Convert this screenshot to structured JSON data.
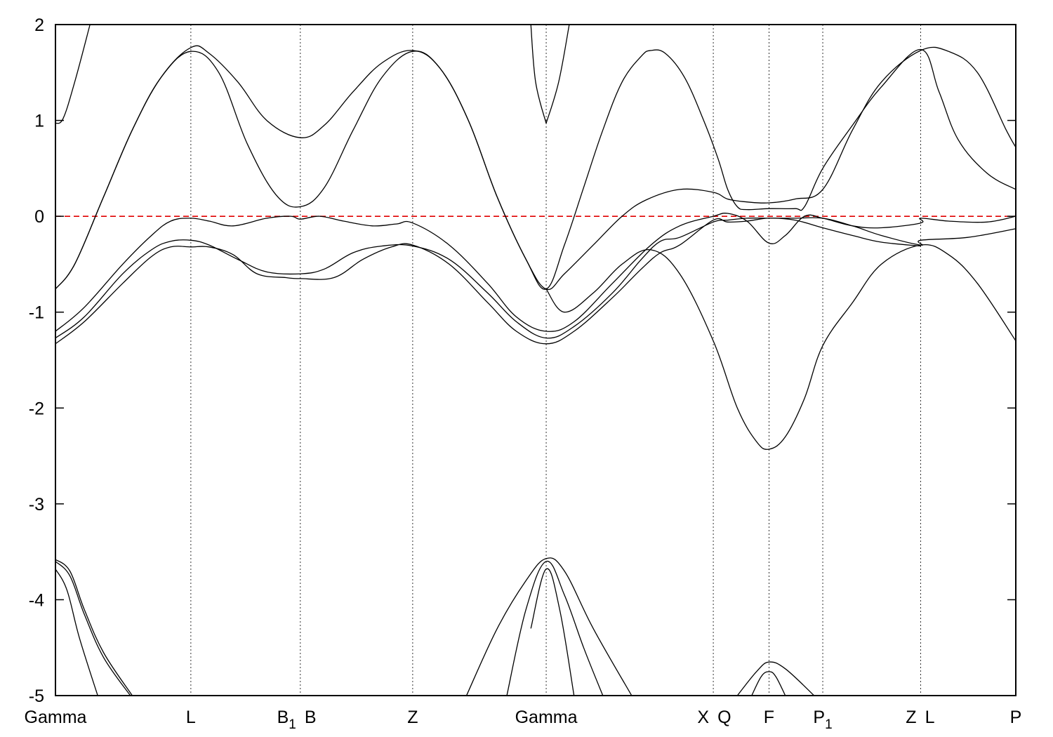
{
  "chart_data": {
    "type": "line",
    "title": "",
    "xlabel": "",
    "ylabel": "",
    "ylim": [
      -5,
      2
    ],
    "xlim": [
      0,
      10
    ],
    "yticks": [
      2,
      1,
      0,
      -1,
      -2,
      -3,
      -4,
      -5
    ],
    "ytick_labels": [
      "2",
      "1",
      "0",
      "-1",
      "-2",
      "-3",
      "-4",
      "-5"
    ],
    "kpoints": [
      {
        "label": "Gamma",
        "x": 0
      },
      {
        "label": "L",
        "x": 1.41
      },
      {
        "label": "B",
        "sub": "1",
        "x": 2.55
      },
      {
        "label": "B",
        "x": 2.55
      },
      {
        "label": "Z",
        "x": 3.72
      },
      {
        "label": "Gamma",
        "x": 5.11
      },
      {
        "label": "X",
        "x": 6.85
      },
      {
        "label": "Q",
        "x": 6.85
      },
      {
        "label": "F",
        "x": 7.43
      },
      {
        "label": "P",
        "sub": "1",
        "x": 7.99
      },
      {
        "label": "Z",
        "x": 9.01
      },
      {
        "label": "L",
        "x": 9.01
      },
      {
        "label": "P",
        "x": 10
      }
    ],
    "fermi_level": 0,
    "grid": false,
    "series": [
      {
        "values": [
          [
            0,
            0.97
          ],
          [
            0.08,
            1.02
          ],
          [
            0.2,
            1.4
          ],
          [
            0.36,
            2.0
          ]
        ]
      },
      {
        "values": [
          [
            0,
            -0.76
          ],
          [
            0.2,
            -0.5
          ],
          [
            0.5,
            0.2
          ],
          [
            0.8,
            0.9
          ],
          [
            1.1,
            1.45
          ],
          [
            1.41,
            1.72
          ],
          [
            1.7,
            1.5
          ],
          [
            2.0,
            0.75
          ],
          [
            2.3,
            0.22
          ],
          [
            2.55,
            0.1
          ],
          [
            2.8,
            0.3
          ],
          [
            3.1,
            0.9
          ],
          [
            3.4,
            1.45
          ],
          [
            3.72,
            1.72
          ],
          [
            4.0,
            1.55
          ],
          [
            4.3,
            1.0
          ],
          [
            4.6,
            0.2
          ],
          [
            4.9,
            -0.45
          ],
          [
            5.11,
            -0.76
          ],
          [
            5.3,
            -0.6
          ],
          [
            5.6,
            -0.3
          ],
          [
            5.9,
            0.0
          ],
          [
            6.15,
            0.17
          ],
          [
            6.5,
            0.28
          ],
          [
            6.85,
            0.25
          ],
          [
            7.0,
            0.18
          ],
          [
            7.2,
            0.15
          ],
          [
            7.43,
            0.14
          ],
          [
            7.7,
            0.18
          ],
          [
            7.99,
            0.28
          ],
          [
            8.3,
            0.9
          ],
          [
            8.6,
            1.4
          ],
          [
            9.01,
            1.73
          ],
          [
            9.3,
            1.72
          ],
          [
            9.6,
            1.5
          ],
          [
            9.9,
            0.9
          ],
          [
            10,
            0.72
          ]
        ]
      },
      {
        "values": [
          [
            0,
            -0.76
          ],
          [
            0.2,
            -0.5
          ],
          [
            0.5,
            0.2
          ],
          [
            0.8,
            0.9
          ],
          [
            1.1,
            1.45
          ],
          [
            1.41,
            1.76
          ],
          [
            1.6,
            1.7
          ],
          [
            1.9,
            1.4
          ],
          [
            2.2,
            1.0
          ],
          [
            2.55,
            0.82
          ],
          [
            2.8,
            0.95
          ],
          [
            3.1,
            1.3
          ],
          [
            3.4,
            1.6
          ],
          [
            3.72,
            1.73
          ],
          [
            4.0,
            1.55
          ],
          [
            4.3,
            1.0
          ],
          [
            4.6,
            0.2
          ],
          [
            4.9,
            -0.45
          ],
          [
            5.11,
            -0.76
          ],
          [
            5.3,
            -0.3
          ],
          [
            5.5,
            0.3
          ],
          [
            5.7,
            0.9
          ],
          [
            5.9,
            1.4
          ],
          [
            6.1,
            1.67
          ],
          [
            6.2,
            1.73
          ],
          [
            6.35,
            1.7
          ],
          [
            6.55,
            1.45
          ],
          [
            6.75,
            1.0
          ],
          [
            6.9,
            0.6
          ],
          [
            7.0,
            0.28
          ],
          [
            7.1,
            0.1
          ],
          [
            7.2,
            0.07
          ],
          [
            7.43,
            0.08
          ],
          [
            7.7,
            0.08
          ],
          [
            7.8,
            0.1
          ],
          [
            7.99,
            0.5
          ],
          [
            8.3,
            0.95
          ],
          [
            8.6,
            1.35
          ],
          [
            9.01,
            1.74
          ],
          [
            9.2,
            1.3
          ],
          [
            9.4,
            0.8
          ],
          [
            9.7,
            0.45
          ],
          [
            10,
            0.28
          ]
        ]
      },
      {
        "values": [
          [
            5.11,
            0.97
          ],
          [
            5.0,
            1.4
          ],
          [
            4.95,
            2.0
          ]
        ]
      },
      {
        "values": [
          [
            5.11,
            0.97
          ],
          [
            5.24,
            1.4
          ],
          [
            5.35,
            2.0
          ]
        ]
      },
      {
        "values": [
          [
            0,
            -1.2
          ],
          [
            0.3,
            -0.95
          ],
          [
            0.7,
            -0.5
          ],
          [
            1.0,
            -0.2
          ],
          [
            1.2,
            -0.05
          ],
          [
            1.41,
            -0.02
          ],
          [
            1.6,
            -0.05
          ],
          [
            1.85,
            -0.1
          ],
          [
            2.2,
            -0.02
          ],
          [
            2.45,
            0
          ],
          [
            2.55,
            -0.03
          ],
          [
            2.75,
            0.0
          ],
          [
            3.0,
            -0.05
          ],
          [
            3.3,
            -0.1
          ],
          [
            3.55,
            -0.08
          ],
          [
            3.72,
            -0.07
          ],
          [
            4.1,
            -0.3
          ],
          [
            4.5,
            -0.7
          ],
          [
            4.8,
            -1.05
          ],
          [
            5.11,
            -1.2
          ],
          [
            5.4,
            -1.1
          ],
          [
            5.8,
            -0.7
          ],
          [
            6.2,
            -0.3
          ],
          [
            6.5,
            -0.1
          ],
          [
            6.85,
            0.0
          ],
          [
            7.0,
            0.03
          ],
          [
            7.2,
            -0.05
          ],
          [
            7.43,
            -0.28
          ],
          [
            7.6,
            -0.2
          ],
          [
            7.8,
            0.0
          ],
          [
            7.99,
            -0.02
          ],
          [
            8.3,
            -0.1
          ],
          [
            8.6,
            -0.12
          ],
          [
            9.01,
            -0.07
          ],
          [
            9.01,
            -0.02
          ],
          [
            9.3,
            -0.05
          ],
          [
            9.7,
            -0.06
          ],
          [
            10,
            0.0
          ]
        ]
      },
      {
        "values": [
          [
            0,
            -1.27
          ],
          [
            0.3,
            -1.05
          ],
          [
            0.7,
            -0.6
          ],
          [
            1.0,
            -0.35
          ],
          [
            1.2,
            -0.26
          ],
          [
            1.41,
            -0.25
          ],
          [
            1.6,
            -0.3
          ],
          [
            1.9,
            -0.45
          ],
          [
            2.2,
            -0.58
          ],
          [
            2.55,
            -0.6
          ],
          [
            2.8,
            -0.55
          ],
          [
            3.1,
            -0.38
          ],
          [
            3.4,
            -0.31
          ],
          [
            3.72,
            -0.31
          ],
          [
            4.1,
            -0.45
          ],
          [
            4.5,
            -0.8
          ],
          [
            4.8,
            -1.1
          ],
          [
            5.11,
            -1.27
          ],
          [
            5.4,
            -1.15
          ],
          [
            5.8,
            -0.8
          ],
          [
            6.1,
            -0.45
          ],
          [
            6.3,
            -0.26
          ],
          [
            6.5,
            -0.22
          ],
          [
            6.85,
            -0.06
          ],
          [
            7.0,
            -0.04
          ],
          [
            7.2,
            -0.02
          ],
          [
            7.43,
            -0.02
          ],
          [
            7.7,
            -0.02
          ],
          [
            7.99,
            -0.02
          ],
          [
            8.3,
            -0.1
          ],
          [
            8.6,
            -0.2
          ],
          [
            9.01,
            -0.3
          ],
          [
            9.01,
            -0.25
          ],
          [
            9.5,
            -0.22
          ],
          [
            10,
            -0.13
          ]
        ]
      },
      {
        "values": [
          [
            0,
            -1.33
          ],
          [
            0.3,
            -1.1
          ],
          [
            0.7,
            -0.7
          ],
          [
            1.0,
            -0.42
          ],
          [
            1.2,
            -0.32
          ],
          [
            1.41,
            -0.32
          ],
          [
            1.6,
            -0.32
          ],
          [
            1.85,
            -0.4
          ],
          [
            2.1,
            -0.6
          ],
          [
            2.4,
            -0.64
          ],
          [
            2.55,
            -0.65
          ],
          [
            2.9,
            -0.64
          ],
          [
            3.2,
            -0.45
          ],
          [
            3.5,
            -0.32
          ],
          [
            3.72,
            -0.3
          ],
          [
            4.1,
            -0.5
          ],
          [
            4.5,
            -0.9
          ],
          [
            4.8,
            -1.2
          ],
          [
            5.11,
            -1.33
          ],
          [
            5.4,
            -1.2
          ],
          [
            5.8,
            -0.85
          ],
          [
            6.1,
            -0.55
          ],
          [
            6.3,
            -0.38
          ],
          [
            6.5,
            -0.3
          ],
          [
            6.85,
            -0.04
          ],
          [
            7.0,
            -0.06
          ],
          [
            7.2,
            -0.05
          ],
          [
            7.43,
            -0.02
          ],
          [
            7.7,
            -0.04
          ],
          [
            7.99,
            -0.12
          ],
          [
            8.3,
            -0.2
          ],
          [
            8.6,
            -0.27
          ],
          [
            9.01,
            -0.31
          ]
        ]
      },
      {
        "values": [
          [
            5.11,
            -0.76
          ],
          [
            5.3,
            -1.0
          ],
          [
            5.6,
            -0.8
          ],
          [
            5.9,
            -0.5
          ],
          [
            6.2,
            -0.35
          ],
          [
            6.5,
            -0.6
          ],
          [
            6.85,
            -1.3
          ],
          [
            7.1,
            -2.0
          ],
          [
            7.3,
            -2.35
          ],
          [
            7.43,
            -2.43
          ],
          [
            7.6,
            -2.3
          ],
          [
            7.8,
            -1.9
          ],
          [
            7.99,
            -1.35
          ],
          [
            8.3,
            -0.9
          ],
          [
            8.6,
            -0.5
          ],
          [
            9.01,
            -0.3
          ],
          [
            9.3,
            -0.4
          ],
          [
            9.6,
            -0.7
          ],
          [
            10,
            -1.3
          ]
        ]
      },
      {
        "values": [
          [
            0,
            -3.58
          ],
          [
            0.15,
            -3.7
          ],
          [
            0.3,
            -4.1
          ],
          [
            0.5,
            -4.55
          ],
          [
            0.8,
            -5.0
          ]
        ]
      },
      {
        "values": [
          [
            0,
            -3.6
          ],
          [
            0.15,
            -3.75
          ],
          [
            0.3,
            -4.15
          ],
          [
            0.5,
            -4.6
          ],
          [
            0.78,
            -5.0
          ]
        ]
      },
      {
        "values": [
          [
            0,
            -3.68
          ],
          [
            0.12,
            -3.9
          ],
          [
            0.25,
            -4.4
          ],
          [
            0.44,
            -5.0
          ]
        ]
      },
      {
        "values": [
          [
            4.28,
            -5.0
          ],
          [
            4.6,
            -4.3
          ],
          [
            4.9,
            -3.8
          ],
          [
            5.11,
            -3.57
          ],
          [
            5.3,
            -3.7
          ],
          [
            5.6,
            -4.3
          ],
          [
            6.0,
            -5.0
          ]
        ]
      },
      {
        "values": [
          [
            4.7,
            -5.0
          ],
          [
            4.9,
            -4.1
          ],
          [
            5.11,
            -3.6
          ],
          [
            5.3,
            -3.95
          ],
          [
            5.5,
            -4.5
          ],
          [
            5.7,
            -5.0
          ]
        ]
      },
      {
        "values": [
          [
            4.95,
            -4.3
          ],
          [
            5.11,
            -3.68
          ],
          [
            5.25,
            -4.1
          ],
          [
            5.4,
            -5.0
          ]
        ]
      },
      {
        "values": [
          [
            7.1,
            -5.0
          ],
          [
            7.3,
            -4.75
          ],
          [
            7.43,
            -4.65
          ],
          [
            7.6,
            -4.72
          ],
          [
            7.9,
            -5.0
          ]
        ]
      },
      {
        "values": [
          [
            7.25,
            -5.0
          ],
          [
            7.35,
            -4.8
          ],
          [
            7.43,
            -4.75
          ],
          [
            7.5,
            -4.8
          ],
          [
            7.6,
            -5.0
          ]
        ]
      }
    ]
  }
}
